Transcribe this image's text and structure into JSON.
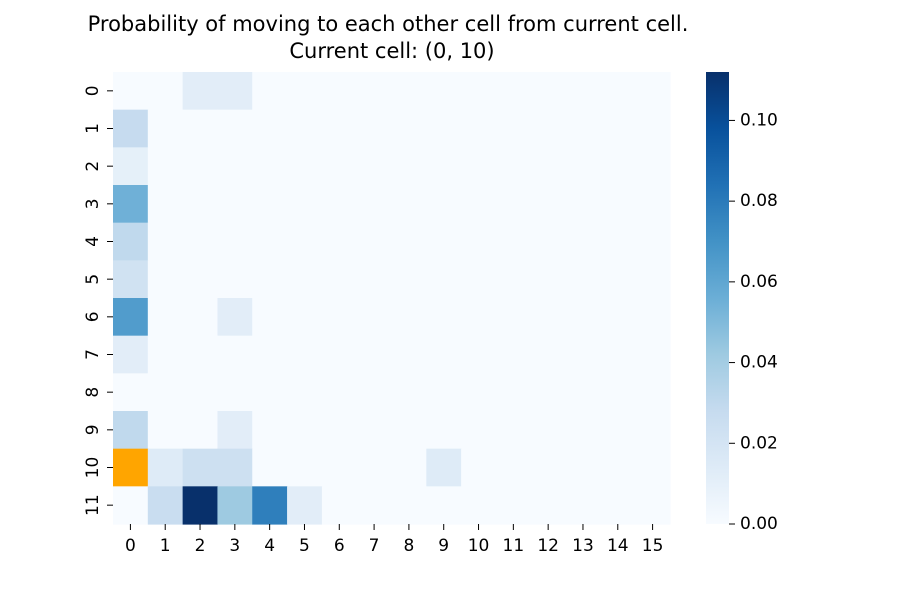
{
  "chart_data": {
    "type": "heatmap",
    "title_line1": "Probability of moving to each other cell from current cell.",
    "title_line2": "Current cell: (0, 10)",
    "x_ticks": [
      "0",
      "1",
      "2",
      "3",
      "4",
      "5",
      "6",
      "7",
      "8",
      "9",
      "10",
      "11",
      "12",
      "13",
      "14",
      "15"
    ],
    "y_ticks": [
      "0",
      "1",
      "2",
      "3",
      "4",
      "5",
      "6",
      "7",
      "8",
      "9",
      "10",
      "11"
    ],
    "colorbar": {
      "vmin": 0.0,
      "vmax": 0.112,
      "ticks": [
        "0.00",
        "0.02",
        "0.04",
        "0.06",
        "0.08",
        "0.10"
      ],
      "tick_values": [
        0.0,
        0.02,
        0.04,
        0.06,
        0.08,
        0.1
      ],
      "colormap": "Blues"
    },
    "current_cell": {
      "row": 10,
      "col": 0,
      "color": "#ffa500"
    },
    "values": [
      [
        0.0,
        0.0,
        0.012,
        0.012,
        0,
        0,
        0,
        0,
        0,
        0,
        0,
        0,
        0,
        0,
        0,
        0
      ],
      [
        0.028,
        0,
        0,
        0,
        0,
        0,
        0,
        0,
        0,
        0,
        0,
        0,
        0,
        0,
        0,
        0
      ],
      [
        0.01,
        0,
        0,
        0,
        0,
        0,
        0,
        0,
        0,
        0,
        0,
        0,
        0,
        0,
        0,
        0
      ],
      [
        0.055,
        0,
        0,
        0,
        0,
        0,
        0,
        0,
        0,
        0,
        0,
        0,
        0,
        0,
        0,
        0
      ],
      [
        0.03,
        0,
        0,
        0,
        0,
        0,
        0,
        0,
        0,
        0,
        0,
        0,
        0,
        0,
        0,
        0
      ],
      [
        0.022,
        0,
        0,
        0,
        0,
        0,
        0,
        0,
        0,
        0,
        0,
        0,
        0,
        0,
        0,
        0
      ],
      [
        0.065,
        0,
        0,
        0.012,
        0,
        0,
        0,
        0,
        0,
        0,
        0,
        0,
        0,
        0,
        0,
        0
      ],
      [
        0.012,
        0,
        0,
        0,
        0,
        0,
        0,
        0,
        0,
        0,
        0,
        0,
        0,
        0,
        0,
        0
      ],
      [
        0,
        0,
        0,
        0,
        0,
        0,
        0,
        0,
        0,
        0,
        0,
        0,
        0,
        0,
        0,
        0
      ],
      [
        0.03,
        0,
        0,
        0.012,
        0,
        0,
        0,
        0,
        0,
        0,
        0,
        0,
        0,
        0,
        0,
        0
      ],
      [
        0,
        0.014,
        0.024,
        0.024,
        0,
        0,
        0,
        0,
        0,
        0.014,
        0,
        0,
        0,
        0,
        0,
        0
      ],
      [
        0,
        0.026,
        0.112,
        0.042,
        0.078,
        0.012,
        0,
        0,
        0,
        0,
        0,
        0,
        0,
        0,
        0,
        0
      ]
    ]
  }
}
